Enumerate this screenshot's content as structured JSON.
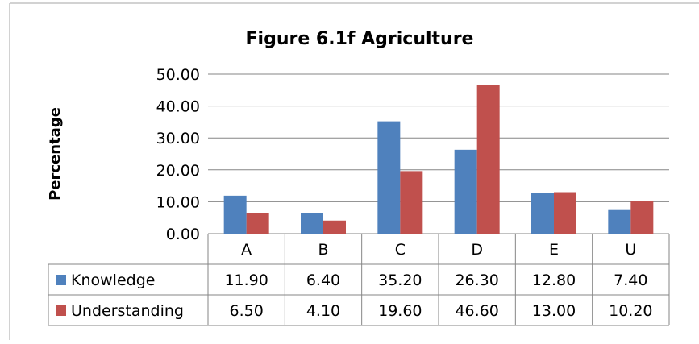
{
  "chart_data": {
    "type": "bar",
    "title": "Figure 6.1f Agriculture",
    "xlabel": "",
    "ylabel": "Percentage",
    "ylim": [
      0,
      50
    ],
    "yticks": [
      "0.00",
      "10.00",
      "20.00",
      "30.00",
      "40.00",
      "50.00"
    ],
    "grid": true,
    "legend": "data-table",
    "categories": [
      "A",
      "B",
      "C",
      "D",
      "E",
      "U"
    ],
    "series": [
      {
        "name": "Knowledge",
        "color": "#4F81BD",
        "values": [
          11.9,
          6.4,
          35.2,
          26.3,
          12.8,
          7.4
        ],
        "labels": [
          "11.90",
          "6.40",
          "35.20",
          "26.30",
          "12.80",
          "7.40"
        ]
      },
      {
        "name": "Understanding",
        "color": "#C0504D",
        "values": [
          6.5,
          4.1,
          19.6,
          46.6,
          13.0,
          10.2
        ],
        "labels": [
          "6.50",
          "4.10",
          "19.60",
          "46.60",
          "13.00",
          "10.20"
        ]
      }
    ]
  }
}
